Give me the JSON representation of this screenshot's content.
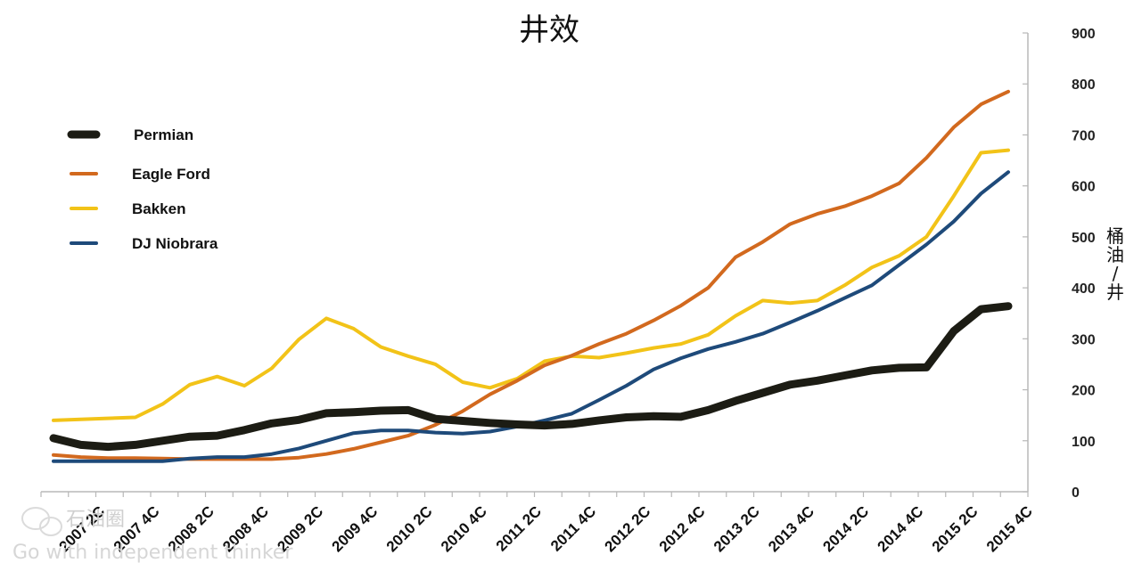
{
  "chart_data": {
    "type": "line",
    "title": "井效",
    "ylabel": "桶油/井",
    "xlabel": "",
    "ylim": [
      0,
      900
    ],
    "yticks": [
      0,
      100,
      200,
      300,
      400,
      500,
      600,
      700,
      800,
      900
    ],
    "y_axis_position": "right",
    "grid": false,
    "legend_position": "top-left",
    "x_tick_labels": [
      "2007 2C",
      "2007 4C",
      "2008 2C",
      "2008 4C",
      "2009 2C",
      "2009 4C",
      "2010 2C",
      "2010 4C",
      "2011 2C",
      "2011 4C",
      "2012 2C",
      "2012 4C",
      "2013 2C",
      "2013 4C",
      "2014 2C",
      "2014 4C",
      "2015 2C",
      "2015 4C"
    ],
    "x_quarters": [
      "2007 1C",
      "2007 2C",
      "2007 3C",
      "2007 4C",
      "2008 1C",
      "2008 2C",
      "2008 3C",
      "2008 4C",
      "2009 1C",
      "2009 2C",
      "2009 3C",
      "2009 4C",
      "2010 1C",
      "2010 2C",
      "2010 3C",
      "2010 4C",
      "2011 1C",
      "2011 2C",
      "2011 3C",
      "2011 4C",
      "2012 1C",
      "2012 2C",
      "2012 3C",
      "2012 4C",
      "2013 1C",
      "2013 2C",
      "2013 3C",
      "2013 4C",
      "2014 1C",
      "2014 2C",
      "2014 3C",
      "2014 4C",
      "2015 1C",
      "2015 2C",
      "2015 3C",
      "2015 4C"
    ],
    "series": [
      {
        "name": "Permian",
        "color": "#1c1c14",
        "width": 9,
        "values": [
          105,
          92,
          88,
          92,
          100,
          108,
          110,
          121,
          134,
          141,
          154,
          156,
          159,
          160,
          143,
          139,
          135,
          132,
          130,
          133,
          140,
          146,
          148,
          147,
          160,
          178,
          194,
          210,
          218,
          228,
          238,
          243,
          244,
          315,
          358,
          364
        ]
      },
      {
        "name": "Eagle Ford",
        "color": "#d2691e",
        "width": 4,
        "values": [
          72,
          68,
          66,
          66,
          65,
          64,
          64,
          64,
          64,
          67,
          74,
          84,
          97,
          110,
          131,
          158,
          191,
          218,
          248,
          267,
          290,
          310,
          336,
          365,
          400,
          460,
          490,
          525,
          545,
          560,
          580,
          605,
          655,
          715,
          760,
          785
        ]
      },
      {
        "name": "Bakken",
        "color": "#f2c318",
        "width": 4,
        "values": [
          140,
          142,
          144,
          146,
          172,
          210,
          226,
          208,
          242,
          299,
          340,
          320,
          284,
          266,
          250,
          215,
          204,
          222,
          256,
          266,
          263,
          272,
          282,
          290,
          308,
          345,
          375,
          370,
          375,
          405,
          440,
          463,
          500,
          580,
          665,
          670
        ]
      },
      {
        "name": "DJ Niobrara",
        "color": "#1e4a7a",
        "width": 4,
        "values": [
          60,
          60,
          60,
          60,
          60,
          65,
          68,
          68,
          74,
          85,
          100,
          115,
          120,
          120,
          116,
          114,
          118,
          128,
          140,
          153,
          180,
          208,
          240,
          262,
          280,
          294,
          310,
          332,
          355,
          380,
          405,
          445,
          485,
          530,
          585,
          627
        ]
      }
    ]
  },
  "watermark": {
    "name": "石油圈",
    "tagline": "Go with independent thinker"
  }
}
